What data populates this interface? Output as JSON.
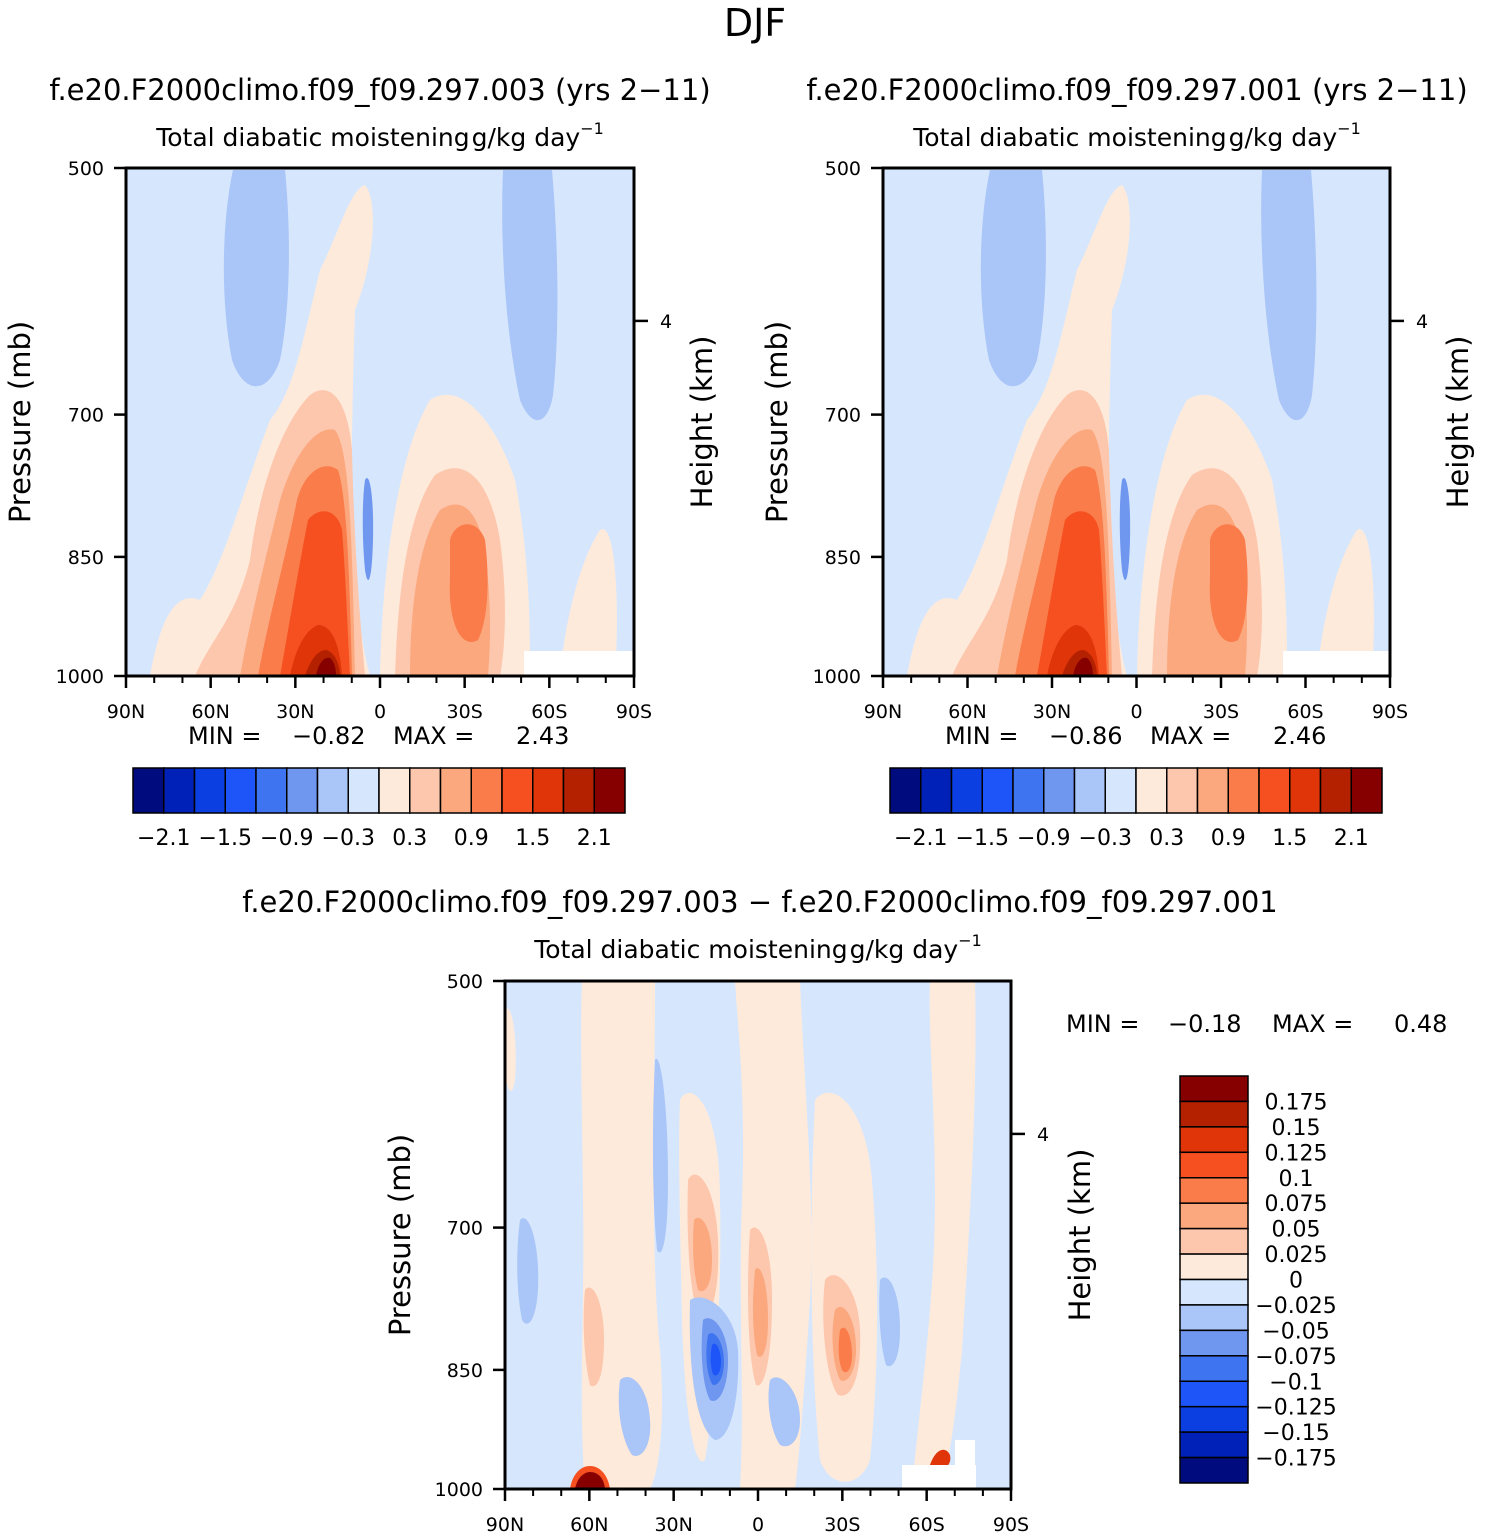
{
  "figure": {
    "season": "DJF",
    "case_a": "f.e20.F2000climo.f09_f09.297.003 (yrs 2−11)",
    "case_b": "f.e20.F2000climo.f09_f09.297.001 (yrs 2−11)",
    "diff_title": "f.e20.F2000climo.f09_f09.297.003 − f.e20.F2000climo.f09_f09.297.001"
  },
  "colors": {
    "abs_levels": [
      "#000c7d",
      "#0021b8",
      "#0b3fe2",
      "#1e55f8",
      "#3f74f0",
      "#6f97f0",
      "#aac5f8",
      "#d6e7fd",
      "#feeadb",
      "#fdc7ad",
      "#fca87e",
      "#f97c4a",
      "#f65021",
      "#e03409",
      "#b32100",
      "#860000"
    ],
    "diff_levels": [
      "#000c7d",
      "#0021b8",
      "#0b3fe2",
      "#1e55f8",
      "#3f74f0",
      "#6f97f0",
      "#aac5f8",
      "#d6e7fd",
      "#feeadb",
      "#fdc7ad",
      "#fca87e",
      "#f97c4a",
      "#f65021",
      "#e03409",
      "#b32100",
      "#860000"
    ]
  },
  "chart_data": [
    {
      "type": "heatmap",
      "id": "panel-a",
      "title": "Total diabatic moistening",
      "units": "g/kg day",
      "units_exp": "−1",
      "ylabel": "Pressure (mb)",
      "ylabel_right": "Height (km)",
      "yticks": [
        "500",
        "700",
        "850",
        "1000"
      ],
      "ytick_values": [
        500,
        700,
        850,
        1000
      ],
      "ytick_right": "4",
      "ytick_right_value": 616,
      "xticks": [
        "90N",
        "60N",
        "30N",
        "0",
        "30S",
        "60S",
        "90S"
      ],
      "xtick_values": [
        90,
        60,
        30,
        0,
        -30,
        -60,
        -90
      ],
      "ylim": [
        500,
        1000
      ],
      "xlim": [
        90,
        -90
      ],
      "min_label": "MIN =",
      "min_value": "−0.82",
      "max_label": "MAX =",
      "max_value": "2.43",
      "colorbar_labels": [
        "−2.1",
        "−1.5",
        "−0.9",
        "−0.3",
        "0.3",
        "0.9",
        "1.5",
        "2.1"
      ]
    },
    {
      "type": "heatmap",
      "id": "panel-b",
      "title": "Total diabatic moistening",
      "units": "g/kg day",
      "units_exp": "−1",
      "ylabel": "Pressure (mb)",
      "ylabel_right": "Height (km)",
      "yticks": [
        "500",
        "700",
        "850",
        "1000"
      ],
      "ytick_values": [
        500,
        700,
        850,
        1000
      ],
      "ytick_right": "4",
      "ytick_right_value": 616,
      "xticks": [
        "90N",
        "60N",
        "30N",
        "0",
        "30S",
        "60S",
        "90S"
      ],
      "xtick_values": [
        90,
        60,
        30,
        0,
        -30,
        -60,
        -90
      ],
      "ylim": [
        500,
        1000
      ],
      "xlim": [
        90,
        -90
      ],
      "min_label": "MIN =",
      "min_value": "−0.86",
      "max_label": "MAX =",
      "max_value": "2.46",
      "colorbar_labels": [
        "−2.1",
        "−1.5",
        "−0.9",
        "−0.3",
        "0.3",
        "0.9",
        "1.5",
        "2.1"
      ]
    },
    {
      "type": "heatmap",
      "id": "panel-diff",
      "title": "Total diabatic moistening",
      "units": "g/kg day",
      "units_exp": "−1",
      "ylabel": "Pressure (mb)",
      "ylabel_right": "Height (km)",
      "yticks": [
        "500",
        "700",
        "850",
        "1000"
      ],
      "ytick_values": [
        500,
        700,
        850,
        1000
      ],
      "ytick_right": "4",
      "ytick_right_value": 616,
      "xticks": [
        "90N",
        "60N",
        "30N",
        "0",
        "30S",
        "60S",
        "90S"
      ],
      "xtick_values": [
        90,
        60,
        30,
        0,
        -30,
        -60,
        -90
      ],
      "ylim": [
        500,
        1000
      ],
      "xlim": [
        90,
        -90
      ],
      "min_label": "MIN =",
      "min_value": "−0.18",
      "max_label": "MAX =",
      "max_value": "0.48",
      "colorbar_labels": [
        "0.175",
        "0.15",
        "0.125",
        "0.1",
        "0.075",
        "0.05",
        "0.025",
        "0",
        "−0.025",
        "−0.05",
        "−0.075",
        "−0.1",
        "−0.125",
        "−0.15",
        "−0.175"
      ]
    }
  ]
}
